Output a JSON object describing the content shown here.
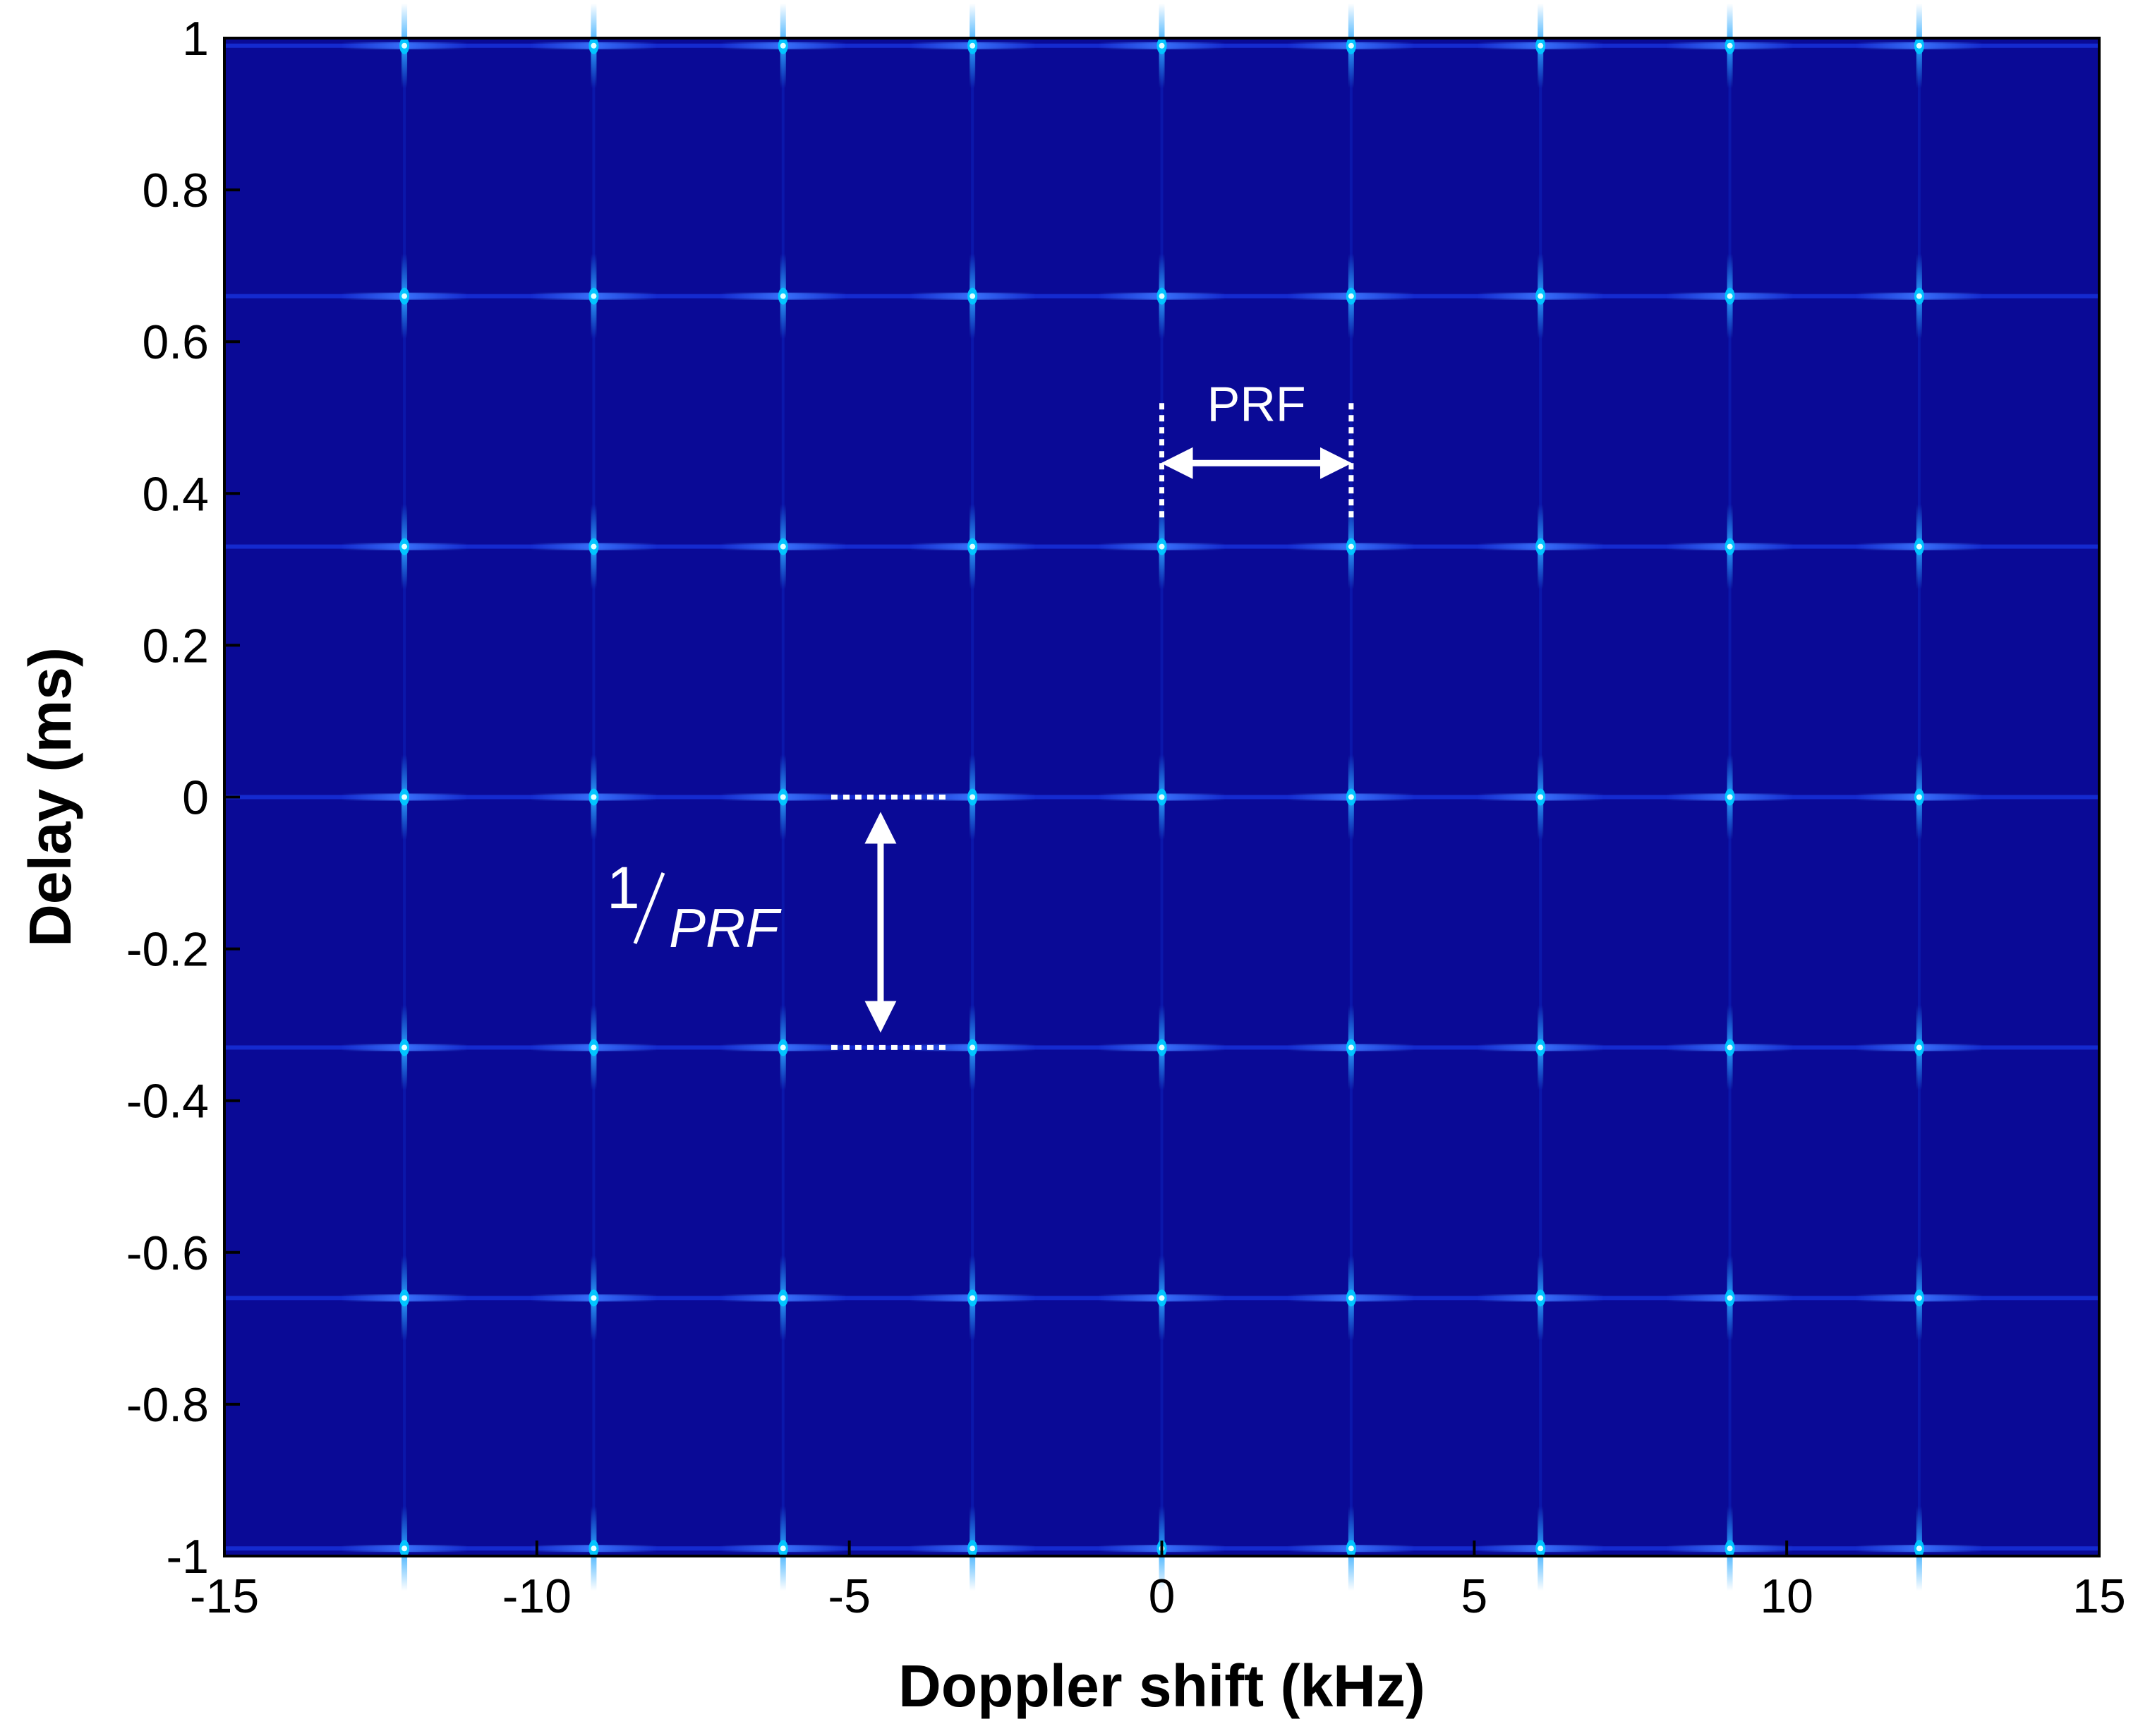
{
  "chart_data": {
    "type": "heatmap",
    "title": "",
    "xlabel": "Doppler shift (kHz)",
    "ylabel": "Delay (ms)",
    "xlim": [
      -15,
      15
    ],
    "ylim": [
      -1,
      1
    ],
    "x_ticks": [
      -15,
      -10,
      -5,
      0,
      5,
      10,
      15
    ],
    "y_ticks": [
      1,
      0.8,
      0.6,
      0.4,
      0.2,
      0,
      -0.2,
      -0.4,
      -0.6,
      -0.8,
      -1
    ],
    "x_tick_labels": [
      "-15",
      "-10",
      "-5",
      "0",
      "5",
      "10",
      "15"
    ],
    "y_tick_labels": [
      "1",
      "0.8",
      "0.6",
      "0.4",
      "0.2",
      "0",
      "-0.2",
      "-0.4",
      "-0.6",
      "-0.8",
      "-1"
    ],
    "grid": false,
    "colors": {
      "background": "#0a0a96",
      "peak": "#00c8ff",
      "peak_core": "#e0ffff",
      "ridge": "#1e46ff",
      "annotation": "#ffffff"
    },
    "peak_doppler_khz": [
      -12.12,
      -9.09,
      -6.06,
      -3.03,
      0,
      3.03,
      6.06,
      9.09,
      12.12
    ],
    "peak_delay_ms": [
      0.99,
      0.66,
      0.33,
      0,
      -0.33,
      -0.66,
      -0.99
    ],
    "annotations": [
      {
        "kind": "horizontal-span",
        "label": "PRF",
        "x_from": 0,
        "x_to": 3.03,
        "y": 0.44
      },
      {
        "kind": "vertical-span",
        "label_numerator": "1",
        "label_denominator": "PRF",
        "y_from": 0,
        "y_to": -0.33,
        "x": -4.5
      }
    ]
  }
}
